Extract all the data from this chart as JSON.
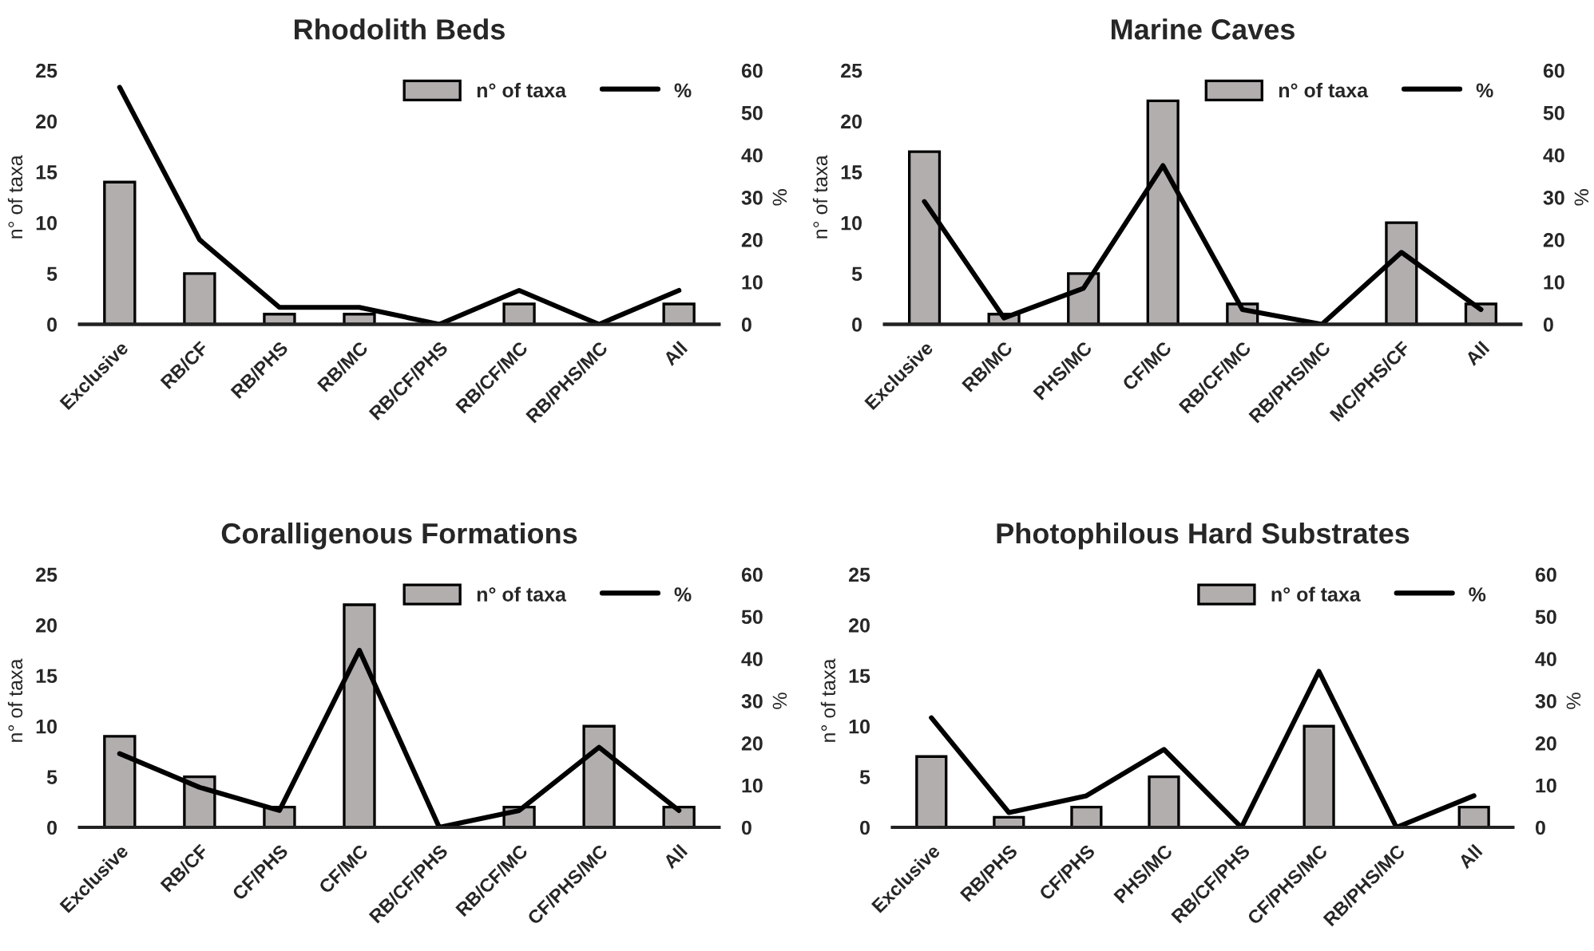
{
  "chart_data": [
    {
      "type": "bar",
      "title": "Rhodolith Beds",
      "ylabel": "n° of taxa",
      "y2label": "%",
      "categories": [
        "Exclusive",
        "RB/CF",
        "RB/PHS",
        "RB/MC",
        "RB/CF/PHS",
        "RB/CF/MC",
        "RB/PHS/MC",
        "All"
      ],
      "series": [
        {
          "name": "n° of taxa",
          "color": "#b3aeae",
          "values": [
            14,
            5,
            1,
            1,
            0,
            2,
            0,
            2
          ]
        },
        {
          "name": "%",
          "type": "line",
          "axis": "y2",
          "color": "#000000",
          "values": [
            56,
            20,
            4,
            4,
            0,
            8,
            0,
            8
          ]
        }
      ],
      "ylim": [
        0,
        25
      ],
      "yticks": [
        0,
        5,
        10,
        15,
        20,
        25
      ],
      "y2lim": [
        0,
        60
      ],
      "y2ticks": [
        0,
        10,
        20,
        30,
        40,
        50,
        60
      ],
      "legend": "top right"
    },
    {
      "type": "bar",
      "title": "Marine Caves",
      "ylabel": "n° of taxa",
      "y2label": "%",
      "categories": [
        "Exclusive",
        "RB/MC",
        "PHS/MC",
        "CF/MC",
        "RB/CF/MC",
        "RB/PHS/MC",
        "MC/PHS/CF",
        "All"
      ],
      "series": [
        {
          "name": "n° of taxa",
          "color": "#b3aeae",
          "values": [
            17,
            1,
            5,
            22,
            2,
            0,
            10,
            2
          ]
        },
        {
          "name": "%",
          "type": "line",
          "axis": "y2",
          "color": "#000000",
          "values": [
            29,
            1.5,
            8.5,
            37.5,
            3.5,
            0,
            17,
            3.5
          ]
        }
      ],
      "ylim": [
        0,
        25
      ],
      "yticks": [
        0,
        5,
        10,
        15,
        20,
        25
      ],
      "y2lim": [
        0,
        60
      ],
      "y2ticks": [
        0,
        10,
        20,
        30,
        40,
        50,
        60
      ],
      "legend": "top right"
    },
    {
      "type": "bar",
      "title": "Coralligenous Formations",
      "ylabel": "n° of taxa",
      "y2label": "%",
      "categories": [
        "Exclusive",
        "RB/CF",
        "CF/PHS",
        "CF/MC",
        "RB/CF/PHS",
        "RB/CF/MC",
        "CF/PHS/MC",
        "All"
      ],
      "series": [
        {
          "name": "n° of taxa",
          "color": "#b3aeae",
          "values": [
            9,
            5,
            2,
            22,
            0,
            2,
            10,
            2
          ]
        },
        {
          "name": "%",
          "type": "line",
          "axis": "y2",
          "color": "#000000",
          "values": [
            17.5,
            9.5,
            4,
            42,
            0,
            4,
            19,
            4
          ]
        }
      ],
      "ylim": [
        0,
        25
      ],
      "yticks": [
        0,
        5,
        10,
        15,
        20,
        25
      ],
      "y2lim": [
        0,
        60
      ],
      "y2ticks": [
        0,
        10,
        20,
        30,
        40,
        50,
        60
      ],
      "legend": "top right"
    },
    {
      "type": "bar",
      "title": "Photophilous Hard Substrates",
      "ylabel": "n° of taxa",
      "y2label": "%",
      "categories": [
        "Exclusive",
        "RB/PHS",
        "CF/PHS",
        "PHS/MC",
        "RB/CF/PHS",
        "CF/PHS/MC",
        "RB/PHS/MC",
        "All"
      ],
      "series": [
        {
          "name": "n° of taxa",
          "color": "#b3aeae",
          "values": [
            7,
            1,
            2,
            5,
            0,
            10,
            0,
            2
          ]
        },
        {
          "name": "%",
          "type": "line",
          "axis": "y2",
          "color": "#000000",
          "values": [
            26,
            3.5,
            7.5,
            18.5,
            0,
            37,
            0,
            7.5
          ]
        }
      ],
      "ylim": [
        0,
        25
      ],
      "yticks": [
        0,
        5,
        10,
        15,
        20,
        25
      ],
      "y2lim": [
        0,
        60
      ],
      "y2ticks": [
        0,
        10,
        20,
        30,
        40,
        50,
        60
      ],
      "legend": "top right"
    }
  ]
}
